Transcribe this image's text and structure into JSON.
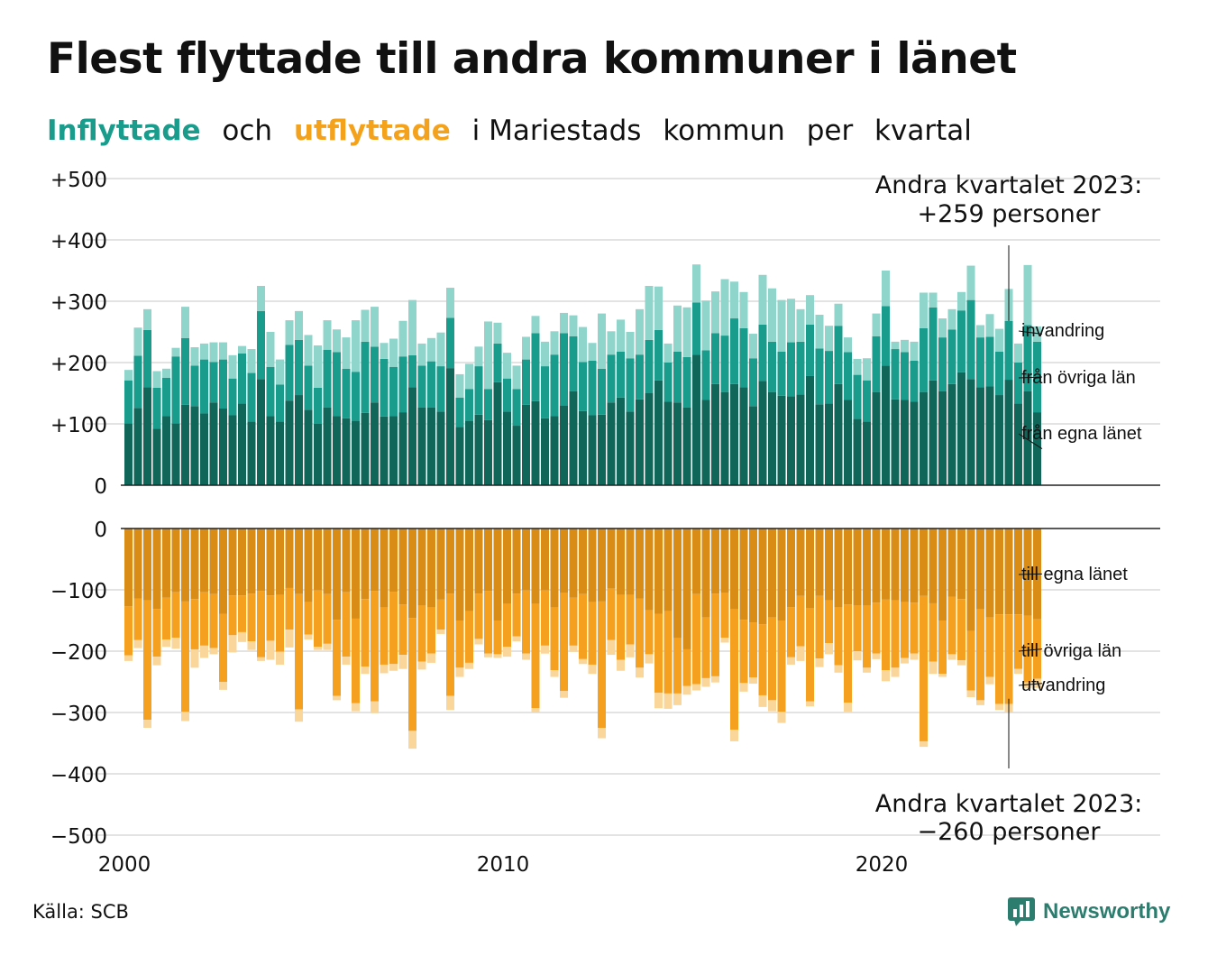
{
  "title": "Flest flyttade till andra kommuner i länet",
  "subtitle": {
    "inflyttade": "Inflyttade",
    "och": "och",
    "utflyttade": "utflyttade",
    "rest_1": "i Mariestads",
    "rest_2": "kommun",
    "rest_3": "per",
    "rest_4": "kvartal"
  },
  "source": "Källa: SCB",
  "logo": {
    "text": "Newsworthy"
  },
  "colors": {
    "in_egna": "#11665a",
    "in_ovriga": "#1a9c8c",
    "in_invandring": "#8fd5cb",
    "out_egna": "#d98d16",
    "out_ovriga": "#f6a01f",
    "out_utvandring": "#fad69a",
    "grid": "#e3e3e3",
    "axis": "#222222",
    "logo": "#2d7d6f"
  },
  "chart_data": {
    "type": "bar",
    "stacked": true,
    "x_unit": "kvartal",
    "x_start": "2000 Q1",
    "x_end": "2023 Q2",
    "x_ticks": [
      "2000",
      "2010",
      "2020"
    ],
    "y_ticks_top": [
      "+500",
      "+400",
      "+300",
      "+200",
      "+100",
      "0"
    ],
    "y_ticks_bottom": [
      "0",
      "−100",
      "−200",
      "−300",
      "−400",
      "−500"
    ],
    "ylim_top": [
      0,
      500
    ],
    "ylim_bottom": [
      -500,
      0
    ],
    "grid": true,
    "annotation_top": {
      "line1": "Andra kvartalet 2023:",
      "line2": "+259 personer"
    },
    "annotation_bottom": {
      "line1": "Andra kvartalet 2023:",
      "line2": "−260 personer"
    },
    "series_in": [
      {
        "name": "från egna länet",
        "values": [
          101,
          126,
          160,
          92,
          113,
          101,
          131,
          129,
          117,
          135,
          125,
          114,
          133,
          104,
          173,
          113,
          104,
          138,
          147,
          123,
          100,
          127,
          113,
          109,
          105,
          118,
          135,
          112,
          113,
          119,
          160,
          127,
          127,
          120,
          191,
          95,
          105,
          115,
          106,
          168,
          120,
          97,
          131,
          137,
          109,
          113,
          130,
          153,
          121,
          114,
          115,
          135,
          143,
          120,
          140,
          150,
          171,
          136,
          135,
          127,
          213,
          139,
          165,
          152,
          165,
          160,
          129,
          170,
          152,
          146,
          145,
          148,
          178,
          132,
          133,
          165,
          139,
          108,
          104,
          152,
          195,
          140,
          139,
          136,
          152,
          171,
          153,
          165,
          184,
          173,
          160,
          161,
          147,
          172,
          133,
          153,
          119
        ]
      },
      {
        "name": "från övriga län",
        "values": [
          70,
          85,
          93,
          67,
          62,
          109,
          109,
          66,
          88,
          66,
          80,
          60,
          82,
          79,
          111,
          80,
          60,
          91,
          90,
          72,
          59,
          94,
          104,
          81,
          80,
          116,
          91,
          94,
          80,
          91,
          52,
          68,
          75,
          74,
          82,
          48,
          52,
          79,
          51,
          63,
          54,
          60,
          74,
          111,
          85,
          100,
          118,
          90,
          80,
          89,
          75,
          78,
          75,
          87,
          73,
          87,
          82,
          64,
          83,
          82,
          85,
          81,
          83,
          92,
          107,
          96,
          78,
          92,
          82,
          72,
          88,
          86,
          84,
          91,
          86,
          95,
          78,
          72,
          67,
          91,
          97,
          82,
          78,
          67,
          104,
          119,
          88,
          89,
          101,
          129,
          81,
          81,
          71,
          96,
          67,
          108,
          115
        ]
      },
      {
        "name": "invandring",
        "values": [
          17,
          46,
          34,
          27,
          15,
          14,
          51,
          30,
          26,
          32,
          28,
          38,
          12,
          39,
          41,
          57,
          41,
          40,
          47,
          50,
          69,
          48,
          37,
          51,
          84,
          52,
          65,
          26,
          46,
          58,
          90,
          36,
          38,
          55,
          49,
          38,
          41,
          32,
          110,
          34,
          42,
          38,
          37,
          28,
          40,
          38,
          33,
          34,
          57,
          29,
          90,
          38,
          52,
          43,
          74,
          88,
          71,
          31,
          75,
          81,
          62,
          81,
          68,
          92,
          60,
          59,
          40,
          81,
          87,
          84,
          71,
          53,
          48,
          55,
          41,
          36,
          24,
          26,
          36,
          37,
          58,
          12,
          20,
          31,
          58,
          24,
          31,
          33,
          30,
          56,
          20,
          37,
          37,
          52,
          31,
          98,
          25
        ]
      }
    ],
    "series_out": [
      {
        "name": "till egna länet",
        "values": [
          127,
          114,
          117,
          131,
          113,
          104,
          119,
          115,
          104,
          107,
          139,
          109,
          109,
          106,
          102,
          109,
          108,
          97,
          107,
          120,
          101,
          107,
          149,
          104,
          147,
          115,
          102,
          129,
          103,
          124,
          146,
          126,
          129,
          116,
          106,
          150,
          135,
          106,
          102,
          150,
          123,
          106,
          101,
          123,
          101,
          129,
          105,
          113,
          107,
          120,
          119,
          98,
          108,
          108,
          114,
          133,
          139,
          135,
          179,
          197,
          107,
          145,
          106,
          105,
          132,
          149,
          153,
          156,
          145,
          150,
          128,
          110,
          130,
          110,
          117,
          129,
          124,
          125,
          126,
          121,
          116,
          117,
          120,
          121,
          110,
          122,
          150,
          111,
          115,
          167,
          132,
          145,
          140,
          140,
          140,
          142,
          148
        ]
      },
      {
        "name": "till övriga län",
        "values": [
          80,
          68,
          195,
          78,
          68,
          74,
          180,
          82,
          87,
          88,
          111,
          65,
          60,
          78,
          108,
          74,
          93,
          68,
          188,
          53,
          92,
          81,
          124,
          105,
          138,
          110,
          180,
          93,
          118,
          82,
          184,
          91,
          75,
          49,
          167,
          77,
          84,
          74,
          102,
          55,
          70,
          70,
          103,
          170,
          90,
          102,
          160,
          78,
          106,
          102,
          206,
          84,
          106,
          81,
          113,
          72,
          129,
          134,
          90,
          60,
          147,
          99,
          135,
          73,
          196,
          103,
          90,
          116,
          135,
          149,
          82,
          82,
          152,
          102,
          70,
          94,
          160,
          75,
          101,
          83,
          115,
          110,
          91,
          83,
          237,
          95,
          87,
          94,
          100,
          97,
          148,
          97,
          146,
          146,
          89,
          109,
          97
        ]
      },
      {
        "name": "utvandring",
        "values": [
          9,
          13,
          13,
          14,
          12,
          18,
          15,
          30,
          20,
          10,
          13,
          28,
          16,
          14,
          6,
          31,
          21,
          29,
          20,
          8,
          5,
          10,
          7,
          13,
          13,
          12,
          19,
          14,
          11,
          23,
          29,
          13,
          15,
          7,
          23,
          15,
          10,
          9,
          6,
          6,
          16,
          8,
          10,
          7,
          13,
          11,
          11,
          10,
          8,
          15,
          17,
          24,
          18,
          21,
          16,
          15,
          25,
          25,
          19,
          14,
          10,
          14,
          10,
          8,
          19,
          14,
          10,
          19,
          18,
          18,
          12,
          24,
          8,
          14,
          18,
          12,
          15,
          15,
          8,
          9,
          18,
          15,
          9,
          10,
          9,
          20,
          5,
          9,
          8,
          11,
          8,
          12,
          10,
          14,
          8,
          9,
          15
        ]
      }
    ],
    "labels_in": [
      "invandring",
      "från övriga län",
      "från egna länet"
    ],
    "labels_out": [
      "till egna länet",
      "till övriga län",
      "utvandring"
    ]
  }
}
